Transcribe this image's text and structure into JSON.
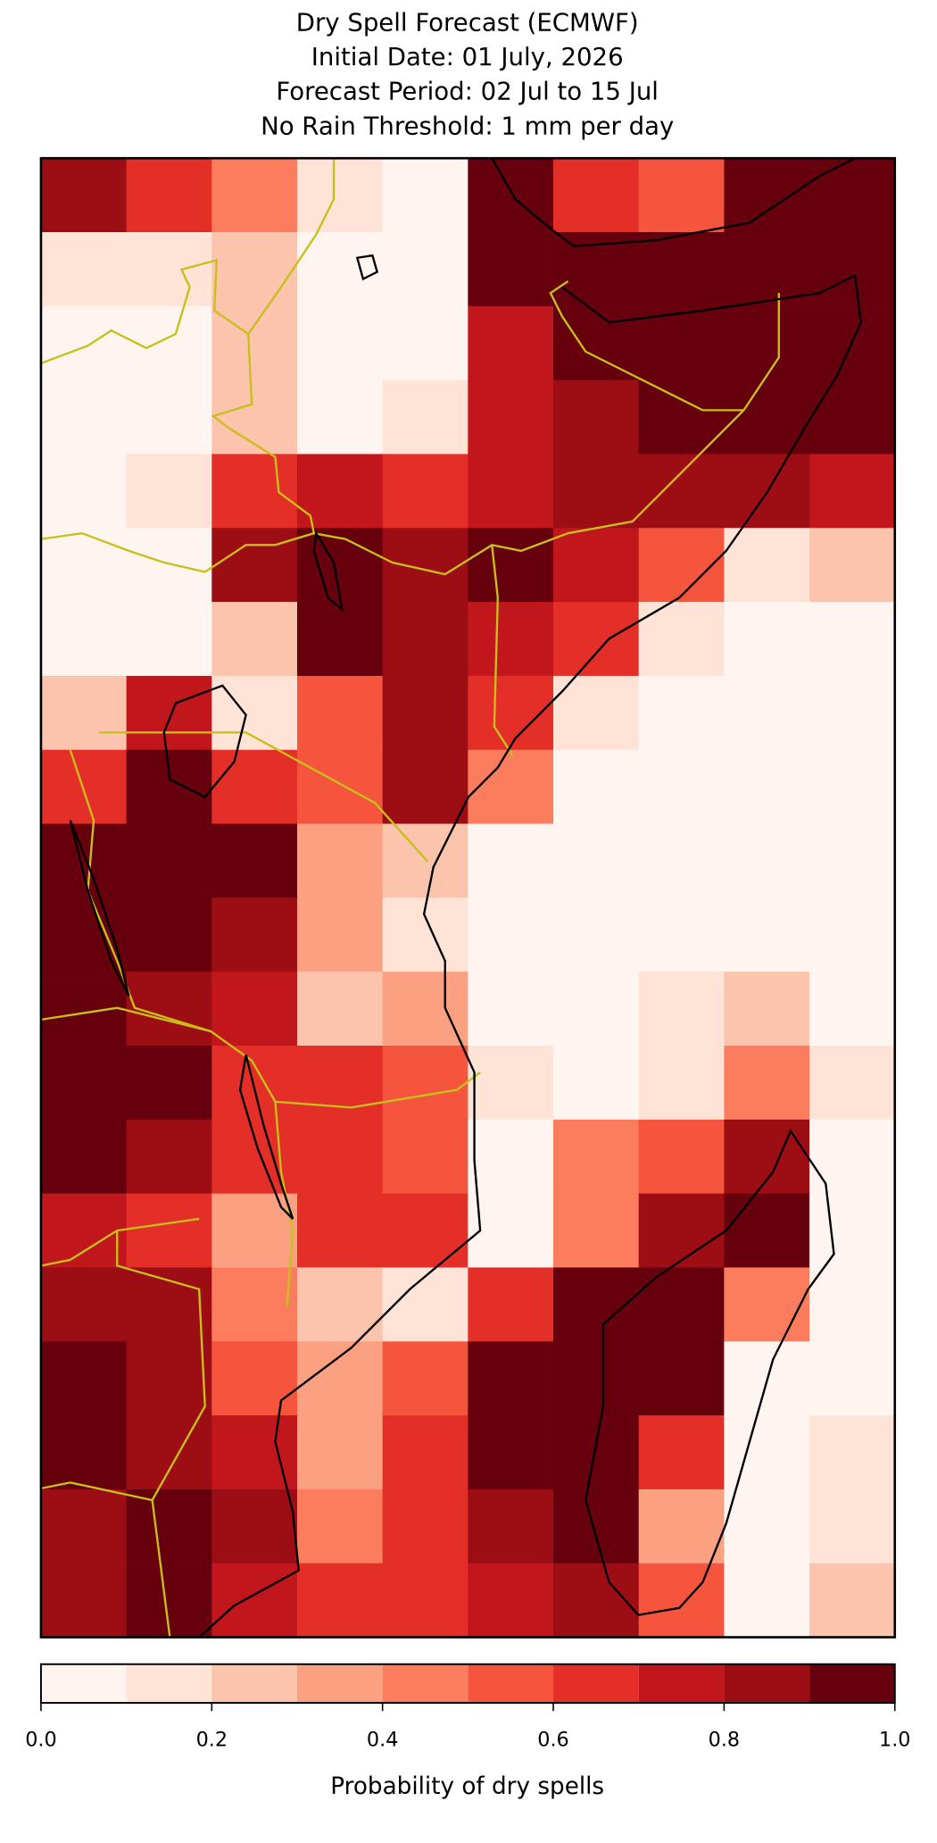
{
  "chart_data": {
    "type": "heatmap",
    "title": [
      "Dry Spell Forecast (ECMWF)",
      "Initial Date: 01 July, 2026",
      "Forecast Period: 02 Jul to 15 Jul",
      "No Rain Threshold: 1 mm per day"
    ],
    "values": [
      [
        0.8,
        0.6,
        0.4,
        0.1,
        0.0,
        0.95,
        0.6,
        0.5,
        0.9,
        0.95
      ],
      [
        0.1,
        0.1,
        0.2,
        0.0,
        0.0,
        0.9,
        0.95,
        0.95,
        0.95,
        0.95
      ],
      [
        0.0,
        0.0,
        0.2,
        0.0,
        0.05,
        0.7,
        0.95,
        0.95,
        0.95,
        0.95
      ],
      [
        0.0,
        0.05,
        0.2,
        0.0,
        0.1,
        0.75,
        0.85,
        0.95,
        0.95,
        0.95
      ],
      [
        0.0,
        0.1,
        0.6,
        0.7,
        0.6,
        0.7,
        0.8,
        0.85,
        0.8,
        0.7
      ],
      [
        0.0,
        0.05,
        0.85,
        0.95,
        0.8,
        0.9,
        0.7,
        0.5,
        0.1,
        0.2
      ],
      [
        0.0,
        0.05,
        0.2,
        0.9,
        0.85,
        0.75,
        0.6,
        0.1,
        0.05,
        0.05
      ],
      [
        0.2,
        0.7,
        0.15,
        0.5,
        0.8,
        0.6,
        0.1,
        0.0,
        0.0,
        0.0
      ],
      [
        0.6,
        0.95,
        0.6,
        0.5,
        0.8,
        0.4,
        0.0,
        0.0,
        0.0,
        0.0
      ],
      [
        0.9,
        0.95,
        0.9,
        0.3,
        0.2,
        0.0,
        0.0,
        0.0,
        0.0,
        0.0
      ],
      [
        0.9,
        0.95,
        0.8,
        0.3,
        0.1,
        0.0,
        0.0,
        0.05,
        0.05,
        0.0
      ],
      [
        0.9,
        0.85,
        0.7,
        0.2,
        0.3,
        0.0,
        0.0,
        0.15,
        0.2,
        0.05
      ],
      [
        0.95,
        0.9,
        0.6,
        0.6,
        0.5,
        0.1,
        0.0,
        0.1,
        0.4,
        0.1
      ],
      [
        0.9,
        0.85,
        0.6,
        0.6,
        0.5,
        0.0,
        0.4,
        0.5,
        0.8,
        0.0
      ],
      [
        0.7,
        0.6,
        0.3,
        0.6,
        0.6,
        0.0,
        0.4,
        0.85,
        0.9,
        0.0
      ],
      [
        0.85,
        0.8,
        0.4,
        0.2,
        0.1,
        0.6,
        0.95,
        0.95,
        0.4,
        0.0
      ],
      [
        0.9,
        0.8,
        0.5,
        0.3,
        0.5,
        0.95,
        0.95,
        0.9,
        0.0,
        0.0
      ],
      [
        0.9,
        0.85,
        0.7,
        0.3,
        0.6,
        0.9,
        0.95,
        0.6,
        0.0,
        0.1
      ],
      [
        0.85,
        0.9,
        0.8,
        0.4,
        0.6,
        0.8,
        0.9,
        0.3,
        0.0,
        0.1
      ],
      [
        0.8,
        0.9,
        0.7,
        0.6,
        0.6,
        0.7,
        0.8,
        0.5,
        0.0,
        0.2
      ]
    ],
    "colorbar": {
      "label": "Probability of dry spells",
      "lim": [
        0,
        1
      ],
      "levels": [
        0,
        0.1,
        0.2,
        0.3,
        0.4,
        0.5,
        0.6,
        0.7,
        0.8,
        0.9,
        1
      ],
      "colors": [
        "#fff5f0",
        "#fee3d6",
        "#fcc4ad",
        "#fca082",
        "#fb7d5d",
        "#f5553d",
        "#e32f27",
        "#c1161b",
        "#9d0d14",
        "#67000d"
      ],
      "ticks": [
        {
          "value": 0,
          "label": "0.0"
        },
        0.2,
        0.4,
        0.6,
        0.8,
        {
          "value": 1,
          "label": "1.0"
        }
      ]
    }
  }
}
